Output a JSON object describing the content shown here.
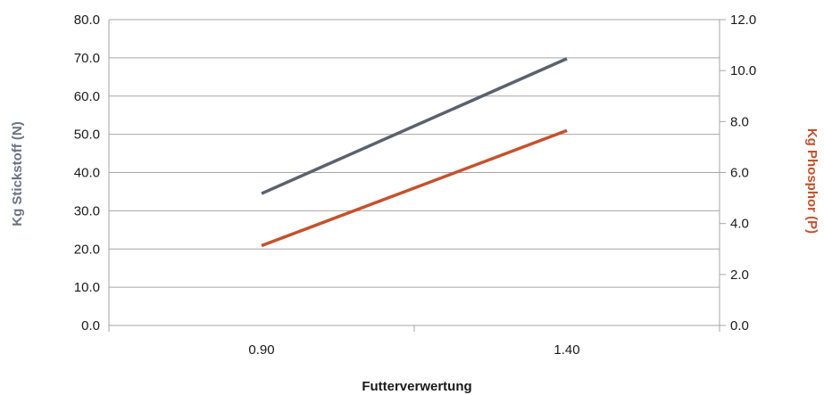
{
  "chart_data": {
    "type": "line",
    "categories": [
      "0.90",
      "1.40"
    ],
    "xlabel": "Futterverwertung",
    "y_left": {
      "label": "Kg Stickstoff (N)",
      "ylim": [
        0,
        80
      ],
      "ticks": [
        "0.0",
        "10.0",
        "20.0",
        "30.0",
        "40.0",
        "50.0",
        "60.0",
        "70.0",
        "80.0"
      ]
    },
    "y_right": {
      "label": "Kg Phosphor (P)",
      "ylim": [
        0,
        12
      ],
      "ticks": [
        "0.0",
        "2.0",
        "4.0",
        "6.0",
        "8.0",
        "10.0",
        "12.0"
      ]
    },
    "series": [
      {
        "axis": "left",
        "color": "#5a626e",
        "values": [
          34.5,
          69.8
        ]
      },
      {
        "axis": "right",
        "color": "#c8502a",
        "values": [
          3.13,
          7.65
        ]
      }
    ],
    "grid": true,
    "colors": {
      "left_axis_label": "#6b7280",
      "right_axis_label": "#c8502a",
      "gridline": "#a6a6a6",
      "xlabel": "#1a1a1a"
    }
  }
}
